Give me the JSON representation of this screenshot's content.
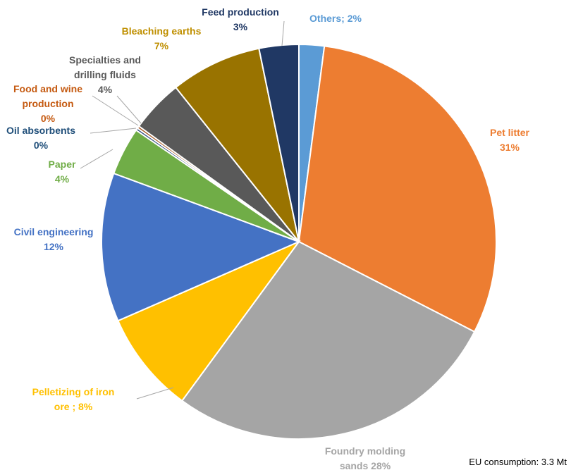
{
  "chart_data": {
    "type": "pie",
    "title": "",
    "slices": [
      {
        "label": "Others; 2%",
        "lines": [
          "Others; 2%"
        ],
        "value": 2.1,
        "color": "#5B9BD5"
      },
      {
        "label": "Pet litter 31%",
        "lines": [
          "Pet litter",
          "31%"
        ],
        "value": 31.0,
        "color": "#ED7D31"
      },
      {
        "label": "Foundry molding sands 28%",
        "lines": [
          "Foundry molding",
          "sands 28%"
        ],
        "value": 28.0,
        "color": "#A5A5A5"
      },
      {
        "label": "Pelletizing of iron ore ; 8%",
        "lines": [
          "Pelletizing of iron",
          "ore ; 8%"
        ],
        "value": 8.5,
        "color": "#FFC000"
      },
      {
        "label": "Civil engineering 12%",
        "lines": [
          "Civil engineering",
          "12%"
        ],
        "value": 12.4,
        "color": "#4472C4"
      },
      {
        "label": "Paper 4%",
        "lines": [
          "Paper",
          "4%"
        ],
        "value": 4.0,
        "color": "#70AD47"
      },
      {
        "label": "Oil absorbents 0%",
        "lines": [
          "Oil absorbents",
          "0%"
        ],
        "value": 0.2,
        "color": "#264478"
      },
      {
        "label": "Food and wine production 0%",
        "lines": [
          "Food and wine",
          "production",
          "0%"
        ],
        "value": 0.2,
        "color": "#9E480E"
      },
      {
        "label": "Specialties and drilling fluids 4%",
        "lines": [
          "Specialties and",
          "drilling fluids",
          "4%"
        ],
        "value": 4.4,
        "color": "#595959"
      },
      {
        "label": "Bleaching earths 7%",
        "lines": [
          "Bleaching earths",
          "7%"
        ],
        "value": 7.6,
        "color": "#997300"
      },
      {
        "label": "Feed production 3%",
        "lines": [
          "Feed production",
          "3%"
        ],
        "value": 3.3,
        "color": "#203864"
      }
    ],
    "label_colors": [
      "#5B9BD5",
      "#ED7D31",
      "#A5A5A5",
      "#FFC000",
      "#4472C4",
      "#70AD47",
      "#1F4E79",
      "#C55A11",
      "#595959",
      "#BF8F00",
      "#203864"
    ],
    "legend": "none"
  },
  "footnote": "EU consumption: 3.3 Mt"
}
